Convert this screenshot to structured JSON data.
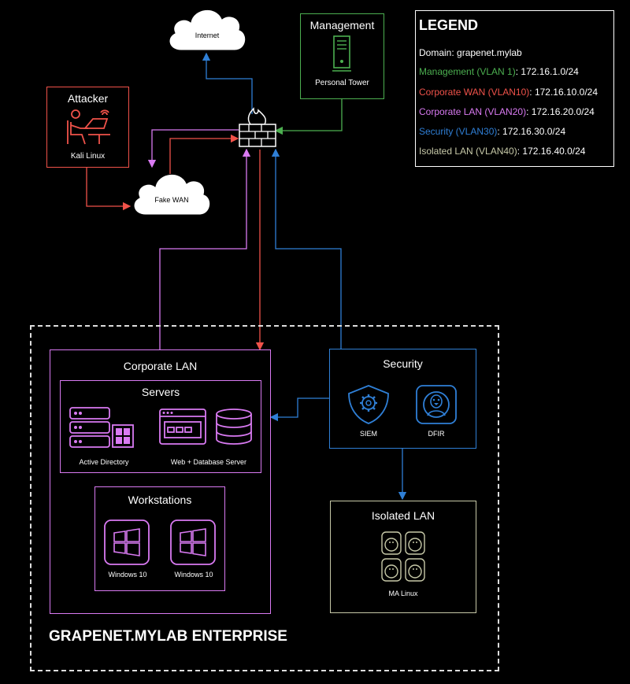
{
  "colors": {
    "management": "#4caf50",
    "corporate_wan": "#f0524a",
    "corporate_lan": "#d97af2",
    "security": "#2f7fd6",
    "isolated": "#c7c9a8",
    "white": "#ffffff"
  },
  "nodes": {
    "internet": {
      "label": "Internet",
      "icon": "cloud-icon"
    },
    "fake_wan": {
      "label": "Fake WAN",
      "icon": "cloud-icon"
    },
    "firewall": {
      "icon": "firewall-icon"
    },
    "attacker": {
      "title": "Attacker",
      "label": "Kali Linux",
      "icon": "hacker-at-laptop-icon"
    },
    "management": {
      "title": "Management",
      "label": "Personal Tower",
      "icon": "tower-pc-icon"
    }
  },
  "legend": {
    "title": "LEGEND",
    "domain": "Domain: grapenet.mylab",
    "rows": [
      {
        "name": "Management (VLAN 1)",
        "subnet": ": 172.16.1.0/24"
      },
      {
        "name": "Corporate WAN (VLAN10)",
        "subnet": ": 172.16.10.0/24"
      },
      {
        "name": "Corporate LAN (VLAN20)",
        "subnet": ": 172.16.20.0/24"
      },
      {
        "name": "Security (VLAN30)",
        "subnet": ": 172.16.30.0/24"
      },
      {
        "name": "Isolated LAN (VLAN40)",
        "subnet": ": 172.16.40.0/24"
      }
    ]
  },
  "enterprise": {
    "title": "GRAPENET.MYLAB ENTERPRISE",
    "corporate_lan": {
      "title": "Corporate LAN",
      "servers": {
        "title": "Servers",
        "items": [
          {
            "label": "Active Directory",
            "icon": "server-windows-icon"
          },
          {
            "label": "Web + Database Server",
            "icon": "web-database-icon"
          }
        ]
      },
      "workstations": {
        "title": "Workstations",
        "items": [
          {
            "label": "Windows 10",
            "icon": "windows-icon"
          },
          {
            "label": "Windows 10",
            "icon": "windows-icon"
          }
        ]
      }
    },
    "security": {
      "title": "Security",
      "items": [
        {
          "label": "SIEM",
          "icon": "shield-gear-icon"
        },
        {
          "label": "DFIR",
          "icon": "linux-penguin-icon"
        }
      ]
    },
    "isolated_lan": {
      "title": "Isolated LAN",
      "label": "MA Linux",
      "icon": "linux-penguin-icon"
    }
  }
}
